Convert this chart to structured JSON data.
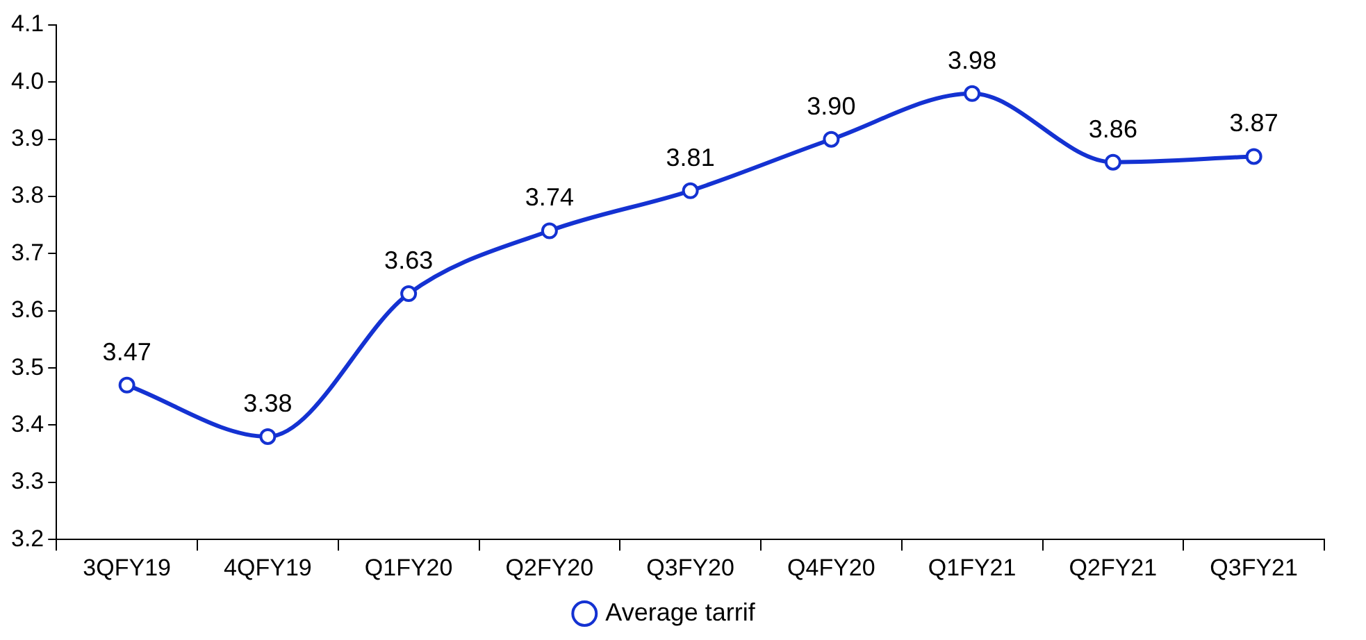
{
  "chart_data": {
    "type": "line",
    "categories": [
      "3QFY19",
      "4QFY19",
      "Q1FY20",
      "Q2FY20",
      "Q3FY20",
      "Q4FY20",
      "Q1FY21",
      "Q2FY21",
      "Q3FY21"
    ],
    "series": [
      {
        "name": "Average tarrif",
        "color": "#1432d2",
        "values": [
          3.47,
          3.38,
          3.63,
          3.74,
          3.81,
          3.9,
          3.98,
          3.86,
          3.87
        ],
        "value_labels": [
          "3.47",
          "3.38",
          "3.63",
          "3.74",
          "3.81",
          "3.90",
          "3.98",
          "3.86",
          "3.87"
        ]
      }
    ],
    "ylim": [
      3.2,
      4.1
    ],
    "yticks": [
      {
        "value": 3.2,
        "label": "3.2"
      },
      {
        "value": 3.3,
        "label": "3.3"
      },
      {
        "value": 3.4,
        "label": "3.4"
      },
      {
        "value": 3.5,
        "label": "3.5"
      },
      {
        "value": 3.6,
        "label": "3.6"
      },
      {
        "value": 3.7,
        "label": "3.7"
      },
      {
        "value": 3.8,
        "label": "3.8"
      },
      {
        "value": 3.9,
        "label": "3.9"
      },
      {
        "value": 4.0,
        "label": "4.0"
      },
      {
        "value": 4.1,
        "label": "4.1"
      }
    ],
    "grid": false,
    "legend": "bottom",
    "marker": "circle",
    "line_style": "solid"
  }
}
